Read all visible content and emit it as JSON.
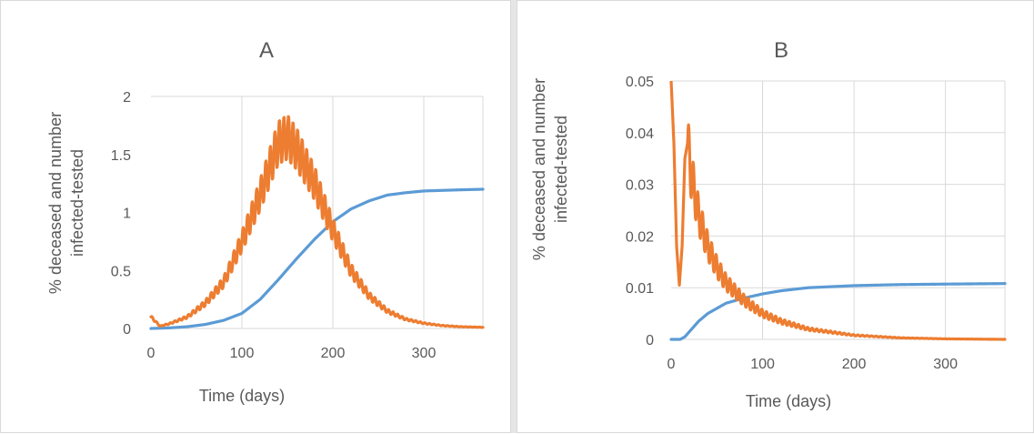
{
  "chart_data": [
    {
      "type": "line",
      "title": "A",
      "xlabel": "Time (days)",
      "ylabel_lines": [
        "% deceased and number",
        "infected-tested"
      ],
      "xlim": [
        0,
        365
      ],
      "ylim": [
        0,
        2
      ],
      "x_ticks": [
        0,
        100,
        200,
        300
      ],
      "y_ticks": [
        0,
        0.5,
        1,
        1.5,
        2
      ],
      "x_tick_labels": [
        "0",
        "100",
        "200",
        "300"
      ],
      "y_tick_labels": [
        "0",
        "0.5",
        "1",
        "1.5",
        "2"
      ],
      "grid": "vertical",
      "legend": "none",
      "series": [
        {
          "color": "#5b9bd5",
          "x": [
            0,
            20,
            40,
            60,
            80,
            100,
            120,
            140,
            160,
            180,
            200,
            220,
            240,
            260,
            280,
            300,
            320,
            340,
            365
          ],
          "values": [
            0,
            0.005,
            0.015,
            0.035,
            0.07,
            0.13,
            0.25,
            0.42,
            0.6,
            0.77,
            0.92,
            1.03,
            1.1,
            1.15,
            1.17,
            1.185,
            1.19,
            1.195,
            1.2
          ]
        },
        {
          "color": "#ed7d31",
          "x": [
            0,
            10,
            20,
            40,
            60,
            80,
            100,
            120,
            140,
            150,
            160,
            180,
            200,
            220,
            240,
            260,
            280,
            300,
            320,
            340,
            365
          ],
          "values": [
            0.1,
            0.02,
            0.04,
            0.1,
            0.22,
            0.4,
            0.75,
            1.15,
            1.6,
            1.65,
            1.55,
            1.25,
            0.85,
            0.5,
            0.28,
            0.15,
            0.08,
            0.045,
            0.025,
            0.015,
            0.01
          ],
          "oscillation_amplitude_fraction": 0.12,
          "oscillation_period_days": 5
        }
      ]
    },
    {
      "type": "line",
      "title": "B",
      "xlabel": "Time (days)",
      "ylabel_lines": [
        "% deceased and number",
        "infected-tested"
      ],
      "xlim": [
        0,
        365
      ],
      "ylim": [
        0,
        0.05
      ],
      "x_ticks": [
        0,
        100,
        200,
        300
      ],
      "y_ticks": [
        0,
        0.01,
        0.02,
        0.03,
        0.04,
        0.05
      ],
      "x_tick_labels": [
        "0",
        "100",
        "200",
        "300"
      ],
      "y_tick_labels": [
        "0",
        "0.01",
        "0.02",
        "0.03",
        "0.04",
        "0.05"
      ],
      "grid": "both",
      "legend": "none",
      "series": [
        {
          "color": "#5b9bd5",
          "x": [
            0,
            10,
            15,
            20,
            30,
            40,
            50,
            60,
            80,
            100,
            120,
            150,
            200,
            250,
            300,
            365
          ],
          "values": [
            0,
            0,
            0.0005,
            0.0015,
            0.0035,
            0.005,
            0.006,
            0.007,
            0.008,
            0.0088,
            0.0094,
            0.01,
            0.0104,
            0.0106,
            0.0107,
            0.0108
          ]
        },
        {
          "color": "#ed7d31",
          "x": [
            0,
            3,
            6,
            9,
            12,
            15,
            18,
            21,
            25,
            30,
            40,
            50,
            60,
            80,
            100,
            120,
            150,
            200,
            250,
            300,
            365
          ],
          "values": [
            0.05,
            0.038,
            0.018,
            0.0105,
            0.018,
            0.035,
            0.038,
            0.033,
            0.029,
            0.024,
            0.018,
            0.014,
            0.011,
            0.0075,
            0.005,
            0.0035,
            0.002,
            0.0008,
            0.0003,
            0.0001,
            0
          ],
          "oscillation_amplitude_fraction": 0.15,
          "oscillation_period_days": 5,
          "oscillation_start_day": 18
        }
      ]
    }
  ]
}
